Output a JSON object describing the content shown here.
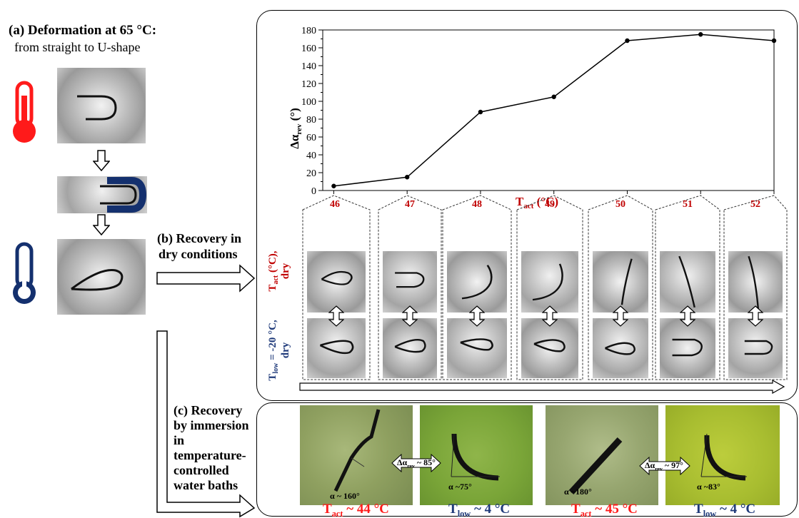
{
  "section_a": {
    "title": "(a) Deformation at 65 °C:",
    "subtitle": "from straight to U-shape"
  },
  "section_b": {
    "label_line1": "(b) Recovery in",
    "label_line2": "dry conditions",
    "row_label_top_main": "T",
    "row_label_top_sub": "act",
    "row_label_top_rest": " (°C),",
    "row_label_top_line2": "dry",
    "row_label_bottom_main": "T",
    "row_label_bottom_sub": "low",
    "row_label_bottom_rest": " = -20 °C,",
    "row_label_bottom_line2": "dry"
  },
  "section_c": {
    "label_lines": [
      "(c) Recovery",
      "by immersion",
      "in",
      "temperature-",
      "controlled",
      "water baths"
    ],
    "photos": [
      {
        "alpha": "α ~ 160°",
        "caption_main": "T",
        "caption_sub": "act",
        "caption_rest": " ~ 44 °C",
        "color": "red"
      },
      {
        "alpha": "α ~75°",
        "caption_main": "T",
        "caption_sub": "low",
        "caption_rest": " ~ 4 °C",
        "color": "blue"
      },
      {
        "alpha": "α ~180°",
        "caption_main": "T",
        "caption_sub": "act",
        "caption_rest": " ~ 45 °C",
        "color": "red"
      },
      {
        "alpha": "α ~83°",
        "caption_main": "T",
        "caption_sub": "low",
        "caption_rest": " ~ 4 °C",
        "color": "blue"
      }
    ],
    "delta_1": "~ 85°",
    "delta_2": "~ 97°",
    "delta_main": "Δα",
    "delta_sub": "rev"
  },
  "chart_data": {
    "type": "line",
    "x": [
      46,
      47,
      48,
      49,
      50,
      51,
      52
    ],
    "values": [
      5,
      15,
      88,
      105,
      168,
      175,
      168
    ],
    "ylim": [
      0,
      180
    ],
    "yticks": [
      0,
      20,
      40,
      60,
      80,
      100,
      120,
      140,
      160,
      180
    ],
    "ylabel_main": "Δα",
    "ylabel_sub": "rev",
    "ylabel_rest": " (°)",
    "xlabel_main": "T",
    "xlabel_sub": "act",
    "xlabel_rest": " (°C)",
    "x_tick_labels": [
      "46",
      "47",
      "48",
      "49",
      "50",
      "51",
      "52"
    ]
  },
  "colors": {
    "hot": "#ff1a1a",
    "cold": "#1f3a7a",
    "temp_label": "#c00000"
  },
  "icons": {
    "hot": "thermometer-hot-icon",
    "cold": "thermometer-cold-icon"
  }
}
